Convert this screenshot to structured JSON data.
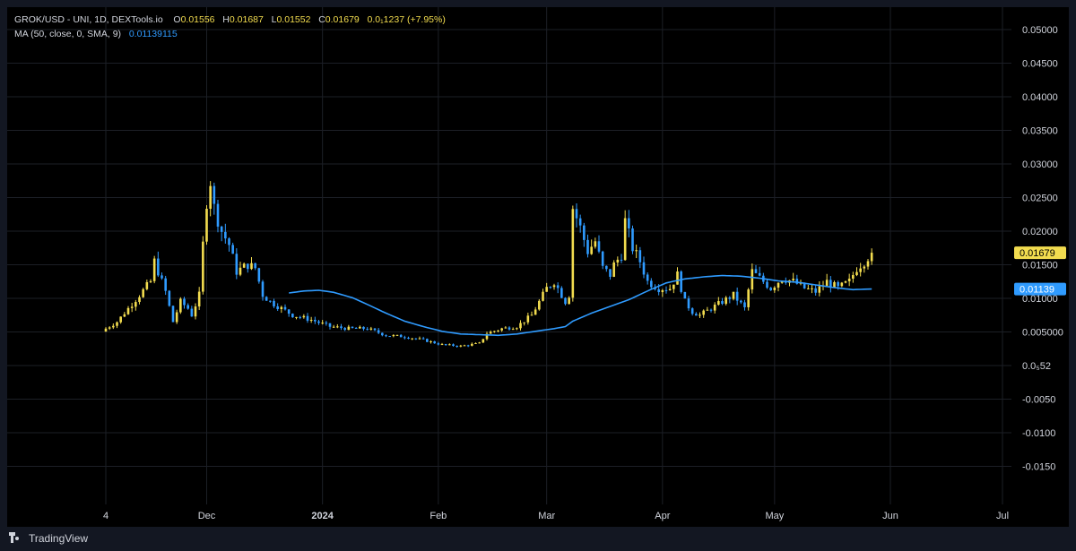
{
  "header": {
    "symbol": "GROK/USD - UNI, 1D, DEXTools.io",
    "o_label": "O",
    "o_value": "0.01556",
    "h_label": "H",
    "h_value": "0.01687",
    "l_label": "L",
    "l_value": "0.01552",
    "c_label": "C",
    "c_value": "0.01679",
    "change": "0.0₁1237 (+7.95%)",
    "ma_label": "MA (50, close, 0, SMA, 9)",
    "ma_value": "0.01139115"
  },
  "footer": {
    "brand": "TradingView"
  },
  "colors": {
    "background": "#000000",
    "candle": "#f2dc4f",
    "candle_down": "#2f9bff",
    "ma": "#2f9bff",
    "axis_text": "#d1d4dc",
    "grid": "#1c1f26"
  },
  "chart_data": {
    "type": "candlestick",
    "series": [
      {
        "name": "GROK/USD",
        "kind": "ohlc"
      },
      {
        "name": "MA (50, close, 0, SMA, 9)",
        "kind": "line"
      }
    ],
    "y_ticks": [
      "0.05000",
      "0.04500",
      "0.04000",
      "0.03500",
      "0.03000",
      "0.02500",
      "0.02000",
      "0.01500",
      "0.01000",
      "0.005000",
      "0.0₅52",
      "-0.0050",
      "-0.0100",
      "-0.0150"
    ],
    "y_tick_values": [
      0.05,
      0.045,
      0.04,
      0.035,
      0.03,
      0.025,
      0.02,
      0.015,
      0.01,
      0.005,
      0,
      -0.005,
      -0.01,
      -0.015
    ],
    "ylim": [
      -0.018,
      0.052
    ],
    "x_ticks": [
      {
        "label": "4",
        "bold": false,
        "day": 0
      },
      {
        "label": "Dec",
        "bold": false,
        "day": 27
      },
      {
        "label": "2024",
        "bold": true,
        "day": 58
      },
      {
        "label": "Feb",
        "bold": false,
        "day": 89
      },
      {
        "label": "Mar",
        "bold": false,
        "day": 118
      },
      {
        "label": "Apr",
        "bold": false,
        "day": 149
      },
      {
        "label": "May",
        "bold": false,
        "day": 179
      },
      {
        "label": "Jun",
        "bold": false,
        "day": 210
      },
      {
        "label": "Jul",
        "bold": false,
        "day": 240
      }
    ],
    "x_range_days": [
      -1,
      241
    ],
    "last_price_label": "0.01679",
    "last_price": 0.01679,
    "ma_last_label": "0.01139",
    "ma_last": 0.01139,
    "close_anchors": [
      [
        0,
        0.0055
      ],
      [
        3,
        0.0065
      ],
      [
        6,
        0.0085
      ],
      [
        9,
        0.0105
      ],
      [
        12,
        0.0125
      ],
      [
        13,
        0.0155
      ],
      [
        16,
        0.011
      ],
      [
        18,
        0.0065
      ],
      [
        20,
        0.0095
      ],
      [
        22,
        0.0085
      ],
      [
        23,
        0.0075
      ],
      [
        25,
        0.0105
      ],
      [
        26,
        0.018
      ],
      [
        27,
        0.0245
      ],
      [
        28,
        0.0275
      ],
      [
        29,
        0.0235
      ],
      [
        31,
        0.02
      ],
      [
        33,
        0.018
      ],
      [
        35,
        0.014
      ],
      [
        38,
        0.015
      ],
      [
        40,
        0.0145
      ],
      [
        42,
        0.0105
      ],
      [
        44,
        0.0095
      ],
      [
        47,
        0.0085
      ],
      [
        50,
        0.0075
      ],
      [
        55,
        0.0068
      ],
      [
        60,
        0.0058
      ],
      [
        65,
        0.0055
      ],
      [
        70,
        0.0055
      ],
      [
        75,
        0.0045
      ],
      [
        80,
        0.0043
      ],
      [
        85,
        0.0038
      ],
      [
        90,
        0.0031
      ],
      [
        95,
        0.0029
      ],
      [
        100,
        0.0033
      ],
      [
        102,
        0.0048
      ],
      [
        106,
        0.0055
      ],
      [
        110,
        0.0058
      ],
      [
        114,
        0.0075
      ],
      [
        116,
        0.0095
      ],
      [
        118,
        0.0115
      ],
      [
        120,
        0.0125
      ],
      [
        123,
        0.0095
      ],
      [
        124,
        0.0105
      ],
      [
        125,
        0.0235
      ],
      [
        127,
        0.0205
      ],
      [
        129,
        0.017
      ],
      [
        131,
        0.0185
      ],
      [
        133,
        0.0145
      ],
      [
        135,
        0.0135
      ],
      [
        136,
        0.015
      ],
      [
        138,
        0.0165
      ],
      [
        139,
        0.0215
      ],
      [
        141,
        0.0175
      ],
      [
        143,
        0.0155
      ],
      [
        145,
        0.0125
      ],
      [
        148,
        0.0115
      ],
      [
        151,
        0.0115
      ],
      [
        153,
        0.0135
      ],
      [
        155,
        0.0095
      ],
      [
        157,
        0.008
      ],
      [
        159,
        0.0075
      ],
      [
        162,
        0.0085
      ],
      [
        165,
        0.0095
      ],
      [
        168,
        0.0105
      ],
      [
        171,
        0.0085
      ],
      [
        173,
        0.014
      ],
      [
        176,
        0.0125
      ],
      [
        178,
        0.0115
      ],
      [
        181,
        0.013
      ],
      [
        184,
        0.0125
      ],
      [
        187,
        0.0115
      ],
      [
        190,
        0.011
      ],
      [
        193,
        0.0125
      ],
      [
        196,
        0.0115
      ],
      [
        199,
        0.0125
      ],
      [
        201,
        0.0145
      ],
      [
        203,
        0.0155
      ],
      [
        205,
        0.0168
      ]
    ],
    "ma_anchors": [
      [
        49,
        0.0108
      ],
      [
        53,
        0.0111
      ],
      [
        57,
        0.0112
      ],
      [
        61,
        0.0109
      ],
      [
        66,
        0.0101
      ],
      [
        70,
        0.0091
      ],
      [
        75,
        0.0078
      ],
      [
        80,
        0.0066
      ],
      [
        85,
        0.0058
      ],
      [
        90,
        0.0051
      ],
      [
        95,
        0.0047
      ],
      [
        100,
        0.0046
      ],
      [
        105,
        0.0045
      ],
      [
        110,
        0.0047
      ],
      [
        115,
        0.0051
      ],
      [
        120,
        0.0055
      ],
      [
        123,
        0.0058
      ],
      [
        125,
        0.0066
      ],
      [
        130,
        0.0078
      ],
      [
        135,
        0.0088
      ],
      [
        140,
        0.0098
      ],
      [
        145,
        0.0111
      ],
      [
        150,
        0.0123
      ],
      [
        155,
        0.0129
      ],
      [
        160,
        0.0132
      ],
      [
        165,
        0.0134
      ],
      [
        170,
        0.0133
      ],
      [
        175,
        0.013
      ],
      [
        180,
        0.0126
      ],
      [
        185,
        0.0124
      ],
      [
        190,
        0.012
      ],
      [
        195,
        0.0116
      ],
      [
        200,
        0.0113
      ],
      [
        205,
        0.01139
      ]
    ]
  }
}
